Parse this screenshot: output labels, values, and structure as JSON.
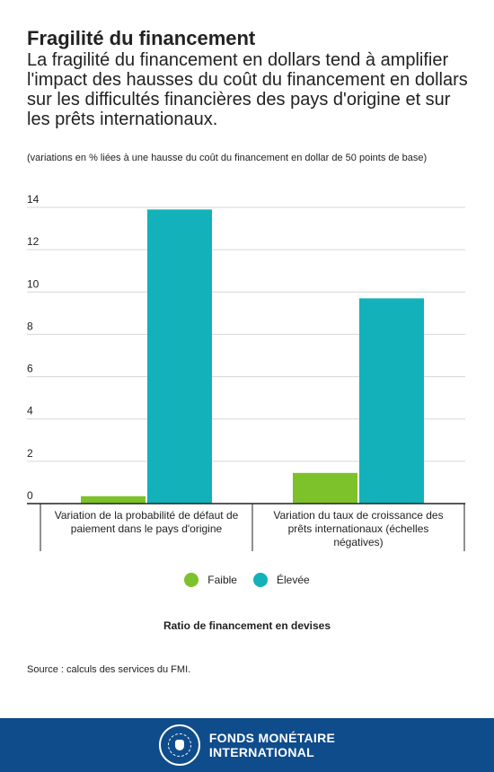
{
  "header": {
    "title": "Fragilité du financement",
    "subtitle": "La fragilité du financement en dollars tend à amplifier l'impact des hausses du coût du financement en dollars sur les difficultés financières des pays d'origine et sur les prêts internationaux.",
    "units_note": "(variations en % liées à une hausse du coût du financement en dollar de 50 points de base)"
  },
  "colors": {
    "faible": "#7dc22b",
    "elevee": "#13b1b9",
    "footer_bg": "#0f4c8c"
  },
  "chart_data": {
    "type": "bar",
    "categories": [
      "Variation de la probabilité de défaut de paiement dans le pays d'origine",
      "Variation du taux de croissance des prêts internationaux (échelles négatives)"
    ],
    "series": [
      {
        "name": "Faible",
        "values": [
          0.35,
          1.45
        ]
      },
      {
        "name": "Élevée",
        "values": [
          13.9,
          9.7
        ]
      }
    ],
    "yticks": [
      "0",
      "2",
      "4",
      "6",
      "8",
      "10",
      "12",
      "14"
    ],
    "ylim": [
      0,
      14
    ],
    "grid": true,
    "legend_placement": "bottom-center",
    "legend_title": "Ratio de financement en devises"
  },
  "footer": {
    "source": "Source : calculs des services du FMI.",
    "org_line1": "FONDS MONÉTAIRE",
    "org_line2": "INTERNATIONAL"
  }
}
